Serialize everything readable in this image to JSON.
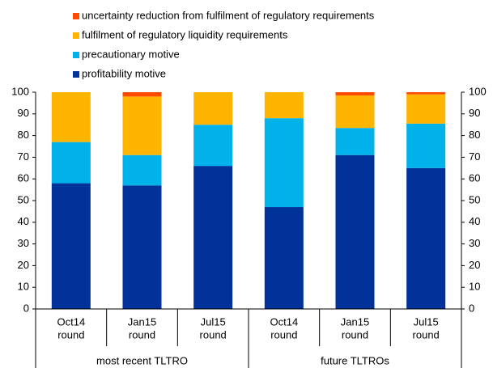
{
  "chart_data": {
    "type": "stacked_bar",
    "categories": [
      [
        "Oct14",
        "round"
      ],
      [
        "Jan15",
        "round"
      ],
      [
        "Jul15",
        "round"
      ],
      [
        "Oct14",
        "round"
      ],
      [
        "Jan15",
        "round"
      ],
      [
        "Jul15",
        "round"
      ]
    ],
    "category_groups": [
      {
        "label": "most recent TLTRO",
        "size": 3
      },
      {
        "label": "future TLTROs",
        "size": 3
      }
    ],
    "series": [
      {
        "name": "profitability motive",
        "color": "#003299",
        "values": [
          58,
          57,
          66,
          47,
          71,
          65
        ]
      },
      {
        "name": "precautionary motive",
        "color": "#00b1ea",
        "values": [
          19,
          14,
          19,
          41,
          12.5,
          20.5
        ]
      },
      {
        "name": "fulfilment of regulatory liquidity requirements",
        "color": "#ffb400",
        "values": [
          23,
          27,
          15,
          12,
          15,
          13.5
        ]
      },
      {
        "name": "uncertainty reduction from fulfilment of regulatory requirements",
        "color": "#ff4b00",
        "values": [
          0,
          2,
          0,
          0,
          1.5,
          1
        ]
      }
    ],
    "ylim": [
      0,
      100
    ],
    "yticks": [
      0,
      10,
      20,
      30,
      40,
      50,
      60,
      70,
      80,
      90,
      100
    ],
    "y2lim": [
      0,
      100
    ],
    "y2ticks": [
      0,
      10,
      20,
      30,
      40,
      50,
      60,
      70,
      80,
      90,
      100
    ],
    "legend": "top-left",
    "grid": false
  }
}
